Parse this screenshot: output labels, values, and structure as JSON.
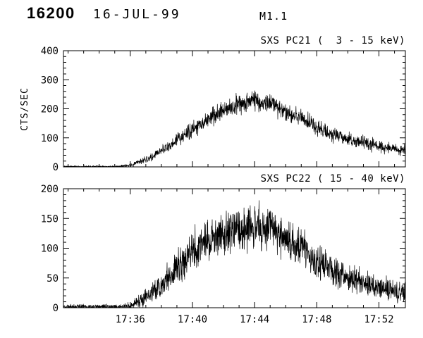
{
  "header": {
    "run_id": "16200",
    "date": "16-JUL-99",
    "flare_class": "M1.1"
  },
  "chart_data": [
    {
      "type": "line",
      "title": "SXS PC21 (  3 - 15 keV)",
      "ylabel": "CTS/SEC",
      "ylim": [
        0,
        400
      ],
      "yticks": [
        0,
        100,
        200,
        300,
        400
      ],
      "y_minor_step": 20,
      "xlim_minutes": [
        1051.7,
        1073.7
      ],
      "xticks": [
        {
          "t": 1056,
          "label": "17:36"
        },
        {
          "t": 1060,
          "label": "17:40"
        },
        {
          "t": 1064,
          "label": "17:44"
        },
        {
          "t": 1068,
          "label": "17:48"
        },
        {
          "t": 1072,
          "label": "17:52"
        }
      ],
      "x_minor_step": 1,
      "show_x_labels": false,
      "grid": false,
      "noise_sd_scale": 1.1,
      "envelope": [
        [
          1051.7,
          1.5
        ],
        [
          1055.2,
          1.5
        ],
        [
          1055.8,
          4
        ],
        [
          1056.3,
          10
        ],
        [
          1057,
          25
        ],
        [
          1057.5,
          38
        ],
        [
          1058,
          55
        ],
        [
          1058.5,
          72
        ],
        [
          1059,
          95
        ],
        [
          1060,
          128
        ],
        [
          1061,
          163
        ],
        [
          1062,
          196
        ],
        [
          1063,
          215
        ],
        [
          1063.6,
          226
        ],
        [
          1064,
          228
        ],
        [
          1064.6,
          224
        ],
        [
          1065.2,
          215
        ],
        [
          1066,
          186
        ],
        [
          1066.8,
          170
        ],
        [
          1067.5,
          158
        ],
        [
          1068,
          135
        ],
        [
          1068.4,
          128
        ],
        [
          1069,
          113
        ],
        [
          1069.6,
          102
        ],
        [
          1070,
          95
        ],
        [
          1071,
          83
        ],
        [
          1072,
          70
        ],
        [
          1073,
          63
        ],
        [
          1073.7,
          57
        ]
      ]
    },
    {
      "type": "line",
      "title": "SXS PC22 ( 15 - 40 keV)",
      "ylabel": "",
      "ylim": [
        0,
        200
      ],
      "yticks": [
        0,
        50,
        100,
        150,
        200
      ],
      "y_minor_step": 10,
      "xlim_minutes": [
        1051.7,
        1073.7
      ],
      "xticks": [
        {
          "t": 1056,
          "label": "17:36"
        },
        {
          "t": 1060,
          "label": "17:40"
        },
        {
          "t": 1064,
          "label": "17:44"
        },
        {
          "t": 1068,
          "label": "17:48"
        },
        {
          "t": 1072,
          "label": "17:52"
        }
      ],
      "x_minor_step": 1,
      "show_x_labels": true,
      "grid": false,
      "noise_sd_scale": 1.6,
      "envelope": [
        [
          1051.7,
          1.5
        ],
        [
          1055.4,
          1.5
        ],
        [
          1056,
          4
        ],
        [
          1056.5,
          10
        ],
        [
          1057,
          18
        ],
        [
          1057.5,
          28
        ],
        [
          1058,
          40
        ],
        [
          1059,
          68
        ],
        [
          1060,
          95
        ],
        [
          1061,
          113
        ],
        [
          1062,
          126
        ],
        [
          1063,
          133
        ],
        [
          1063.8,
          138
        ],
        [
          1064.5,
          136
        ],
        [
          1065.3,
          130
        ],
        [
          1066,
          120
        ],
        [
          1067,
          102
        ],
        [
          1068,
          80
        ],
        [
          1068.6,
          68
        ],
        [
          1069.3,
          58
        ],
        [
          1070,
          50
        ],
        [
          1071,
          41
        ],
        [
          1072,
          33
        ],
        [
          1073,
          28
        ],
        [
          1073.7,
          26
        ]
      ]
    }
  ],
  "colors": {
    "foreground": "#000000",
    "background": "#ffffff"
  }
}
